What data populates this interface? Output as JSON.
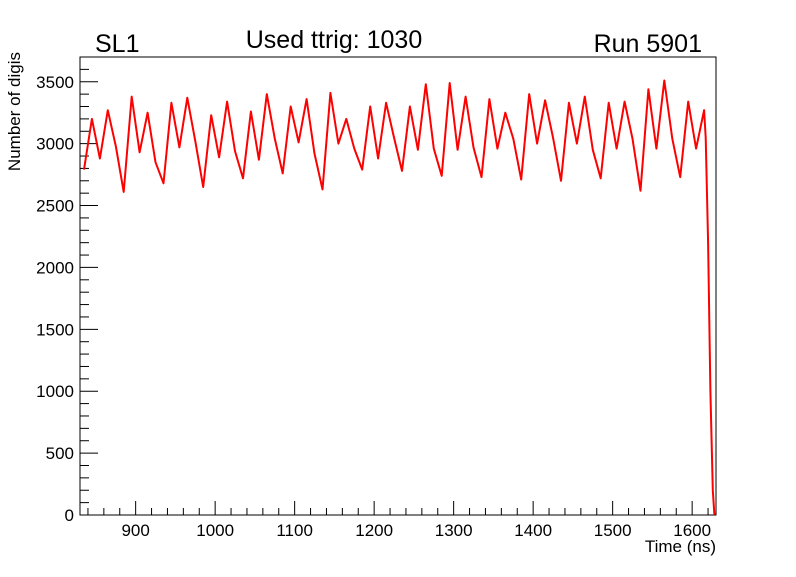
{
  "chart_data": {
    "type": "line",
    "title": "Used ttrig: 1030",
    "label_left": "SL1",
    "label_right": "Run 5901",
    "xlabel": "Time (ns)",
    "ylabel": "Number of digis",
    "xlim": [
      830,
      1630
    ],
    "ylim": [
      0,
      3700
    ],
    "xticks": [
      900,
      1000,
      1100,
      1200,
      1300,
      1400,
      1500,
      1600
    ],
    "yticks": [
      0,
      500,
      1000,
      1500,
      2000,
      2500,
      3000,
      3500
    ],
    "grid": false,
    "series": [
      {
        "color": "#ff0000",
        "x": [
          835,
          845,
          855,
          865,
          875,
          885,
          895,
          905,
          915,
          925,
          935,
          945,
          955,
          965,
          975,
          985,
          995,
          1005,
          1015,
          1025,
          1035,
          1045,
          1055,
          1065,
          1075,
          1085,
          1095,
          1105,
          1115,
          1125,
          1135,
          1145,
          1155,
          1165,
          1175,
          1185,
          1195,
          1205,
          1215,
          1225,
          1235,
          1245,
          1255,
          1265,
          1275,
          1285,
          1295,
          1305,
          1315,
          1325,
          1335,
          1345,
          1355,
          1365,
          1375,
          1385,
          1395,
          1405,
          1415,
          1425,
          1435,
          1445,
          1455,
          1465,
          1475,
          1485,
          1495,
          1505,
          1515,
          1525,
          1535,
          1545,
          1555,
          1565,
          1575,
          1585,
          1595,
          1605,
          1615,
          1617,
          1620,
          1623,
          1626,
          1628
        ],
        "y": [
          2790,
          3200,
          2880,
          3270,
          2980,
          2610,
          3380,
          2930,
          3250,
          2850,
          2680,
          3330,
          2970,
          3370,
          3020,
          2650,
          3230,
          2890,
          3340,
          2940,
          2720,
          3260,
          2870,
          3400,
          3040,
          2760,
          3300,
          3010,
          3360,
          2920,
          2630,
          3410,
          3000,
          3200,
          2960,
          2790,
          3300,
          2880,
          3330,
          3050,
          2780,
          3300,
          2950,
          3480,
          2960,
          2740,
          3490,
          2950,
          3380,
          2970,
          2730,
          3360,
          2960,
          3250,
          3040,
          2710,
          3400,
          3000,
          3350,
          3050,
          2700,
          3330,
          3000,
          3380,
          2950,
          2720,
          3330,
          2960,
          3340,
          3040,
          2620,
          3440,
          2960,
          3510,
          3040,
          2730,
          3340,
          2960,
          3270,
          3050,
          2200,
          1000,
          200,
          0
        ]
      }
    ]
  }
}
